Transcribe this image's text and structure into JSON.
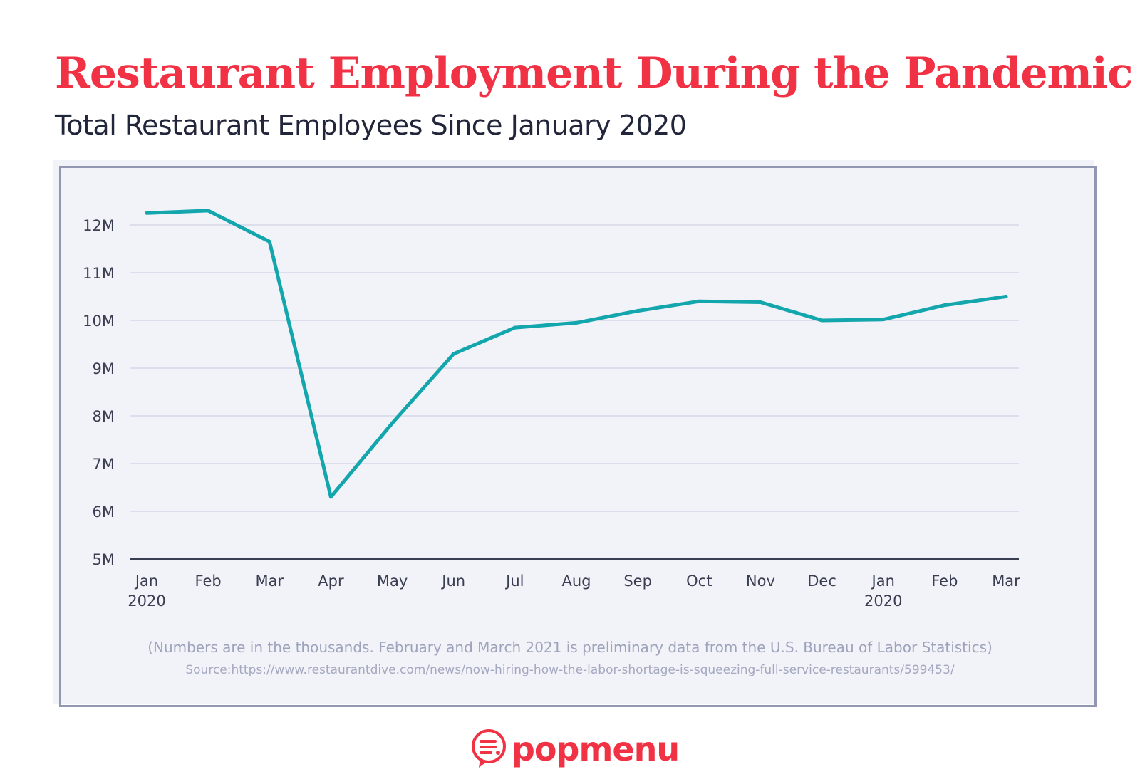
{
  "title": "Restaurant Employment During the Pandemic",
  "subtitle": "Total Restaurant Employees Since January 2020",
  "note": "(Numbers are in the thousands. February and March 2021 is preliminary data from the U.S. Bureau of Labor Statistics)",
  "source": "Source:https://www.restaurantdive.com/news/now-hiring-how-the-labor-shortage-is-squeezing-full-service-restaurants/599453/",
  "logo": {
    "text": "popmenu",
    "icon": "chat-bubble-menu-icon"
  },
  "colors": {
    "title": "#f03244",
    "line": "#14a6ad",
    "grid": "#d4d7e8",
    "axis": "#3a3e52",
    "logo": "#f03244"
  },
  "chart_data": {
    "type": "line",
    "x": [
      "Jan 2020",
      "Feb",
      "Mar",
      "Apr",
      "May",
      "Jun",
      "Jul",
      "Aug",
      "Sep",
      "Oct",
      "Nov",
      "Dec",
      "Jan 2020",
      "Feb",
      "Mar"
    ],
    "x_tick_labels": [
      [
        "Jan",
        "2020"
      ],
      [
        "Feb"
      ],
      [
        "Mar"
      ],
      [
        "Apr"
      ],
      [
        "May"
      ],
      [
        "Jun"
      ],
      [
        "Jul"
      ],
      [
        "Aug"
      ],
      [
        "Sep"
      ],
      [
        "Oct"
      ],
      [
        "Nov"
      ],
      [
        "Dec"
      ],
      [
        "Jan",
        "2020"
      ],
      [
        "Feb"
      ],
      [
        "Mar"
      ]
    ],
    "series": [
      {
        "values": [
          12.25,
          12.3,
          11.65,
          6.3,
          7.85,
          9.3,
          9.85,
          9.95,
          10.2,
          10.4,
          10.38,
          10.0,
          10.02,
          10.32,
          10.5
        ]
      }
    ],
    "y_ticks": [
      5,
      6,
      7,
      8,
      9,
      10,
      11,
      12
    ],
    "y_tick_labels": [
      "5M",
      "6M",
      "7M",
      "8M",
      "9M",
      "10M",
      "11M",
      "12M"
    ],
    "ylim": [
      5,
      12.5
    ],
    "grid": true
  }
}
